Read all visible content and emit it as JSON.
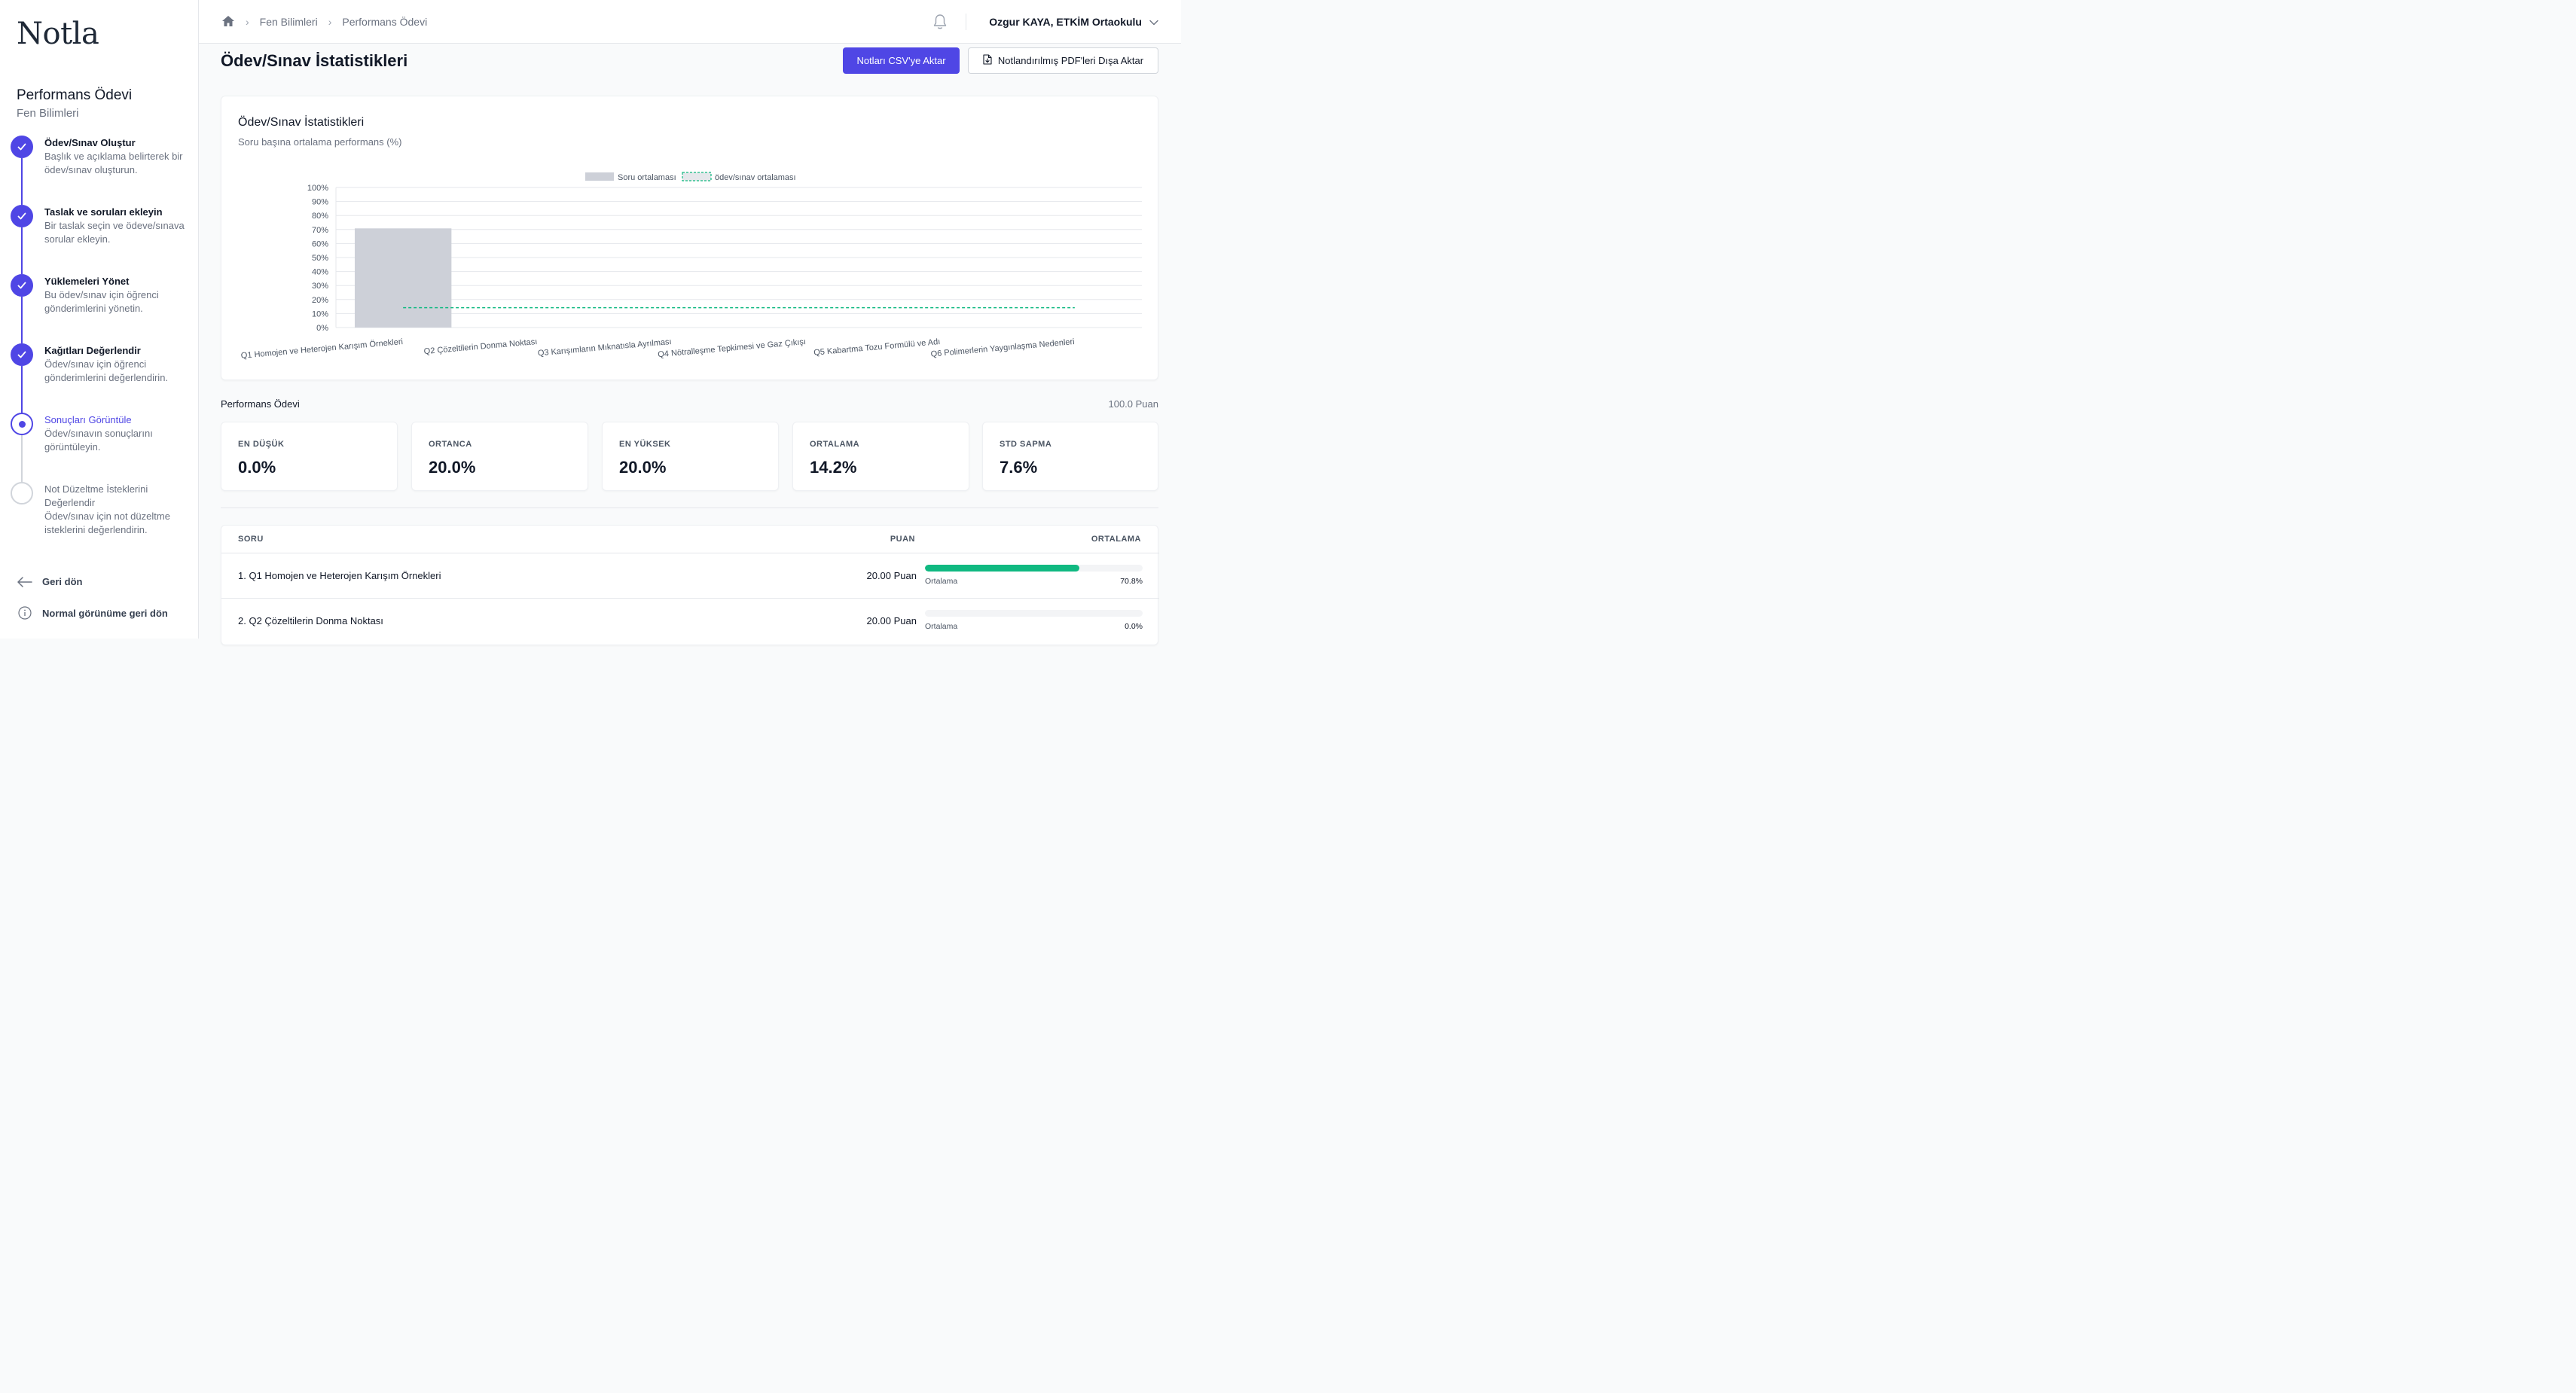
{
  "app": {
    "logo": "Notla"
  },
  "sidebar": {
    "course_title": "Performans Ödevi",
    "course_subtitle": "Fen Bilimleri",
    "steps": [
      {
        "title": "Ödev/Sınav Oluştur",
        "desc": "Başlık ve açıklama belirterek bir ödev/sınav oluşturun.",
        "status": "done"
      },
      {
        "title": "Taslak ve soruları ekleyin",
        "desc": "Bir taslak seçin ve ödeve/sınava sorular ekleyin.",
        "status": "done"
      },
      {
        "title": "Yüklemeleri Yönet",
        "desc": "Bu ödev/sınav için öğrenci gönderimlerini yönetin.",
        "status": "done"
      },
      {
        "title": "Kağıtları Değerlendir",
        "desc": "Ödev/sınav için öğrenci gönderimlerini değerlendirin.",
        "status": "done"
      },
      {
        "title": "Sonuçları Görüntüle",
        "desc": "Ödev/sınavın sonuçlarını görüntüleyin.",
        "status": "current"
      },
      {
        "title": "Not Düzeltme İsteklerini Değerlendir",
        "desc": "Ödev/sınav için not düzeltme isteklerini değerlendirin.",
        "status": "todo"
      }
    ],
    "back_label": "Geri dön",
    "normal_view_label": "Normal görünüme geri dön"
  },
  "topbar": {
    "breadcrumbs": [
      "Fen Bilimleri",
      "Performans Ödevi"
    ],
    "user_label": "Ozgur KAYA, ETKİM Ortaokulu"
  },
  "header": {
    "title": "Ödev/Sınav İstatistikleri",
    "csv_button": "Notları CSV'ye Aktar",
    "pdf_button": "Notlandırılmış PDF'leri Dışa Aktar"
  },
  "chart_card": {
    "title": "Ödev/Sınav İstatistikleri",
    "subtitle": "Soru başına ortalama performans (%)"
  },
  "chart_data": {
    "type": "bar",
    "categories": [
      "Q1 Homojen ve Heterojen Karışım Örnekleri",
      "Q2 Çözeltilerin Donma Noktası",
      "Q3 Karışımların Mıknatısla Ayrılması",
      "Q4 Nötralleşme Tepkimesi ve Gaz Çıkışı",
      "Q5 Kabartma Tozu Formülü ve Adı",
      "Q6 Polimerlerin Yaygınlaşma Nedenleri"
    ],
    "series": [
      {
        "name": "Soru ortalaması",
        "values": [
          70.8,
          0,
          0,
          0,
          0,
          0
        ]
      }
    ],
    "reference_line": {
      "name": "ödev/sınav ortalaması",
      "value": 14.2
    },
    "ylim": [
      0,
      100
    ],
    "yticks": [
      "0%",
      "10%",
      "20%",
      "30%",
      "40%",
      "50%",
      "60%",
      "70%",
      "80%",
      "90%",
      "100%"
    ],
    "legend_position": "top-center",
    "grid": true,
    "colors": {
      "bar": "#cdd0d8",
      "line": "#10b981"
    }
  },
  "stats": {
    "section_label": "Performans Ödevi",
    "section_points": "100.0 Puan",
    "cards": [
      {
        "label": "EN DÜŞÜK",
        "value": "0.0%"
      },
      {
        "label": "ORTANCA",
        "value": "20.0%"
      },
      {
        "label": "EN YÜKSEK",
        "value": "20.0%"
      },
      {
        "label": "ORTALAMA",
        "value": "14.2%"
      },
      {
        "label": "STD SAPMA",
        "value": "7.6%"
      }
    ]
  },
  "table": {
    "headers": {
      "question": "SORU",
      "points": "PUAN",
      "average": "ORTALAMA"
    },
    "rows": [
      {
        "question": "1. Q1 Homojen ve Heterojen Karışım Örnekleri",
        "points": "20.00 Puan",
        "avg_label": "Ortalama",
        "avg_value": "70.8%",
        "avg_fraction": 0.708
      },
      {
        "question": "2. Q2 Çözeltilerin Donma Noktası",
        "points": "20.00 Puan",
        "avg_label": "Ortalama",
        "avg_value": "0.0%",
        "avg_fraction": 0.0
      }
    ]
  },
  "colors": {
    "accent": "#4f46e5",
    "success": "#10b981"
  }
}
